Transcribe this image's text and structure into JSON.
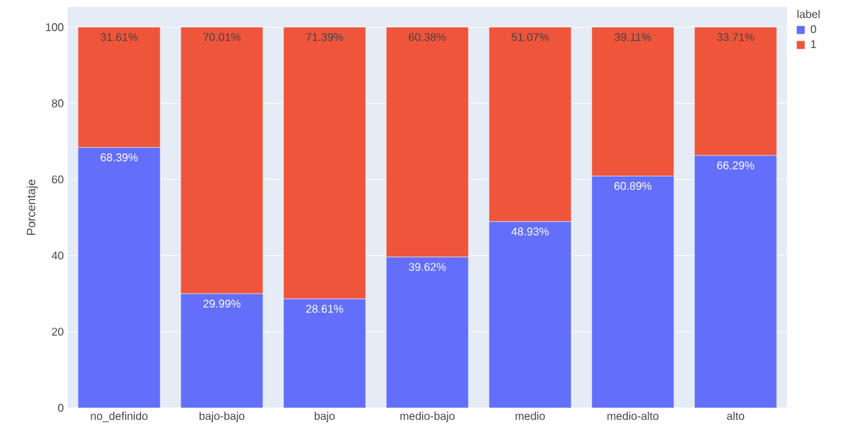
{
  "chart_data": {
    "type": "bar",
    "stacked": true,
    "ylabel": "Porcentaje",
    "legend_title": "label",
    "legend": "top right",
    "grid": "y",
    "categories": [
      "no_definido",
      "bajo-bajo",
      "bajo",
      "medio-bajo",
      "medio",
      "medio-alto",
      "alto"
    ],
    "ylim": [
      0,
      105.3
    ],
    "yticks": [
      0,
      20,
      40,
      60,
      80,
      100
    ],
    "series": [
      {
        "name": "0",
        "color": "#636efa",
        "values": [
          68.39,
          29.99,
          28.61,
          39.62,
          48.93,
          60.89,
          66.29
        ],
        "value_labels": [
          "68.39%",
          "29.99%",
          "28.61%",
          "39.62%",
          "48.93%",
          "60.89%",
          "66.29%"
        ]
      },
      {
        "name": "1",
        "color": "#ef553b",
        "values": [
          31.61,
          70.01,
          71.39,
          60.38,
          51.07,
          39.11,
          33.71
        ],
        "value_labels": [
          "31.61%",
          "70.01%",
          "71.39%",
          "60.38%",
          "51.07%",
          "39.11%",
          "33.71%"
        ]
      }
    ]
  }
}
